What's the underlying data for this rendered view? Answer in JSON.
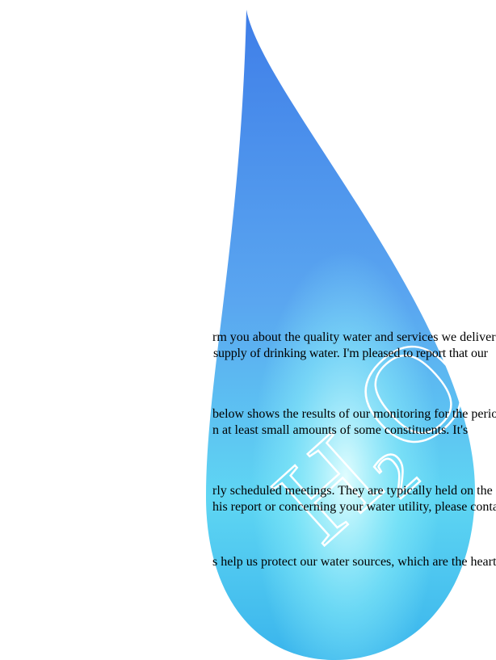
{
  "logo": {
    "h": "H",
    "sub": "2",
    "o": "O"
  },
  "paragraphs": [
    {
      "lines": [
        "rm you about the quality water and services we deliver to",
        "supply of drinking water. I'm pleased to report that our"
      ]
    },
    {
      "lines": [
        "below shows the results of our monitoring for the period",
        "n at least small amounts of some constituents.  It's"
      ]
    },
    {
      "lines": [
        "rly scheduled meetings. They are typically held on the",
        "his report or concerning your water utility, please contact"
      ]
    },
    {
      "lines": [
        "s help us protect our water sources, which are the heart of"
      ]
    }
  ]
}
